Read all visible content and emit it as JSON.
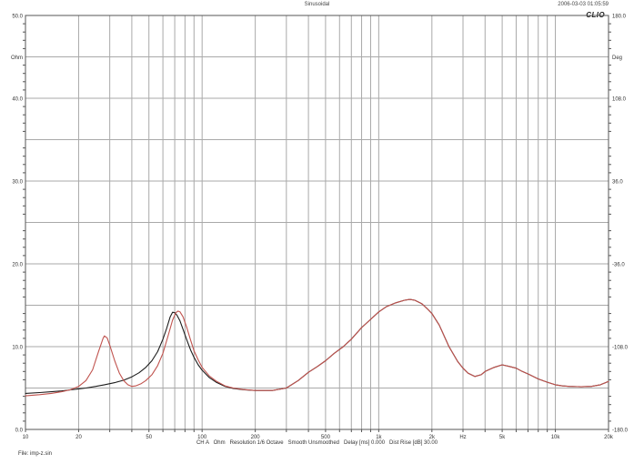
{
  "header": {
    "title": "Sinusoidal",
    "datetime": "2006-03-03 01:05:59",
    "logo": "CLIO"
  },
  "status_bar": {
    "text": "CH A   Ohm   Resolution 1/6 Octave   Smooth Unsmoothed   Delay [ms] 0.000   Dist Rise [dB] 30.00"
  },
  "file_label": "File: imp-z.sin",
  "chart_data": {
    "type": "line",
    "title": "Sinusoidal",
    "grid": "on",
    "grid_color": "#a9a9a9",
    "border_color": "#555555",
    "x_axis": {
      "scale": "log",
      "min_hz": 10,
      "max_hz": 20000,
      "unit_label": "Hz",
      "unit_label_at_hz": 3000,
      "ticks": [
        {
          "hz": 10,
          "label": "10"
        },
        {
          "hz": 20,
          "label": "20"
        },
        {
          "hz": 50,
          "label": "50"
        },
        {
          "hz": 100,
          "label": "100"
        },
        {
          "hz": 200,
          "label": "200"
        },
        {
          "hz": 500,
          "label": "500"
        },
        {
          "hz": 1000,
          "label": "1k"
        },
        {
          "hz": 2000,
          "label": "2k"
        },
        {
          "hz": 5000,
          "label": "5k"
        },
        {
          "hz": 10000,
          "label": "10k"
        },
        {
          "hz": 20000,
          "label": "20k"
        }
      ]
    },
    "y_axis_left": {
      "unit_label": "Ohm",
      "unit_label_at": 45,
      "min": 0,
      "max": 50,
      "gridline_step": 5,
      "ticks": [
        {
          "v": 50,
          "label": "50.0"
        },
        {
          "v": 40,
          "label": "40.0"
        },
        {
          "v": 30,
          "label": "30.0"
        },
        {
          "v": 20,
          "label": "20.0"
        },
        {
          "v": 10,
          "label": "10.0"
        },
        {
          "v": 0,
          "label": "0.0"
        }
      ]
    },
    "y_axis_right": {
      "unit_label": "Deg",
      "unit_label_at": 144,
      "min": -180,
      "max": 180,
      "ticks": [
        {
          "v": 180,
          "label": "180.0"
        },
        {
          "v": 108,
          "label": "108.0"
        },
        {
          "v": 36,
          "label": "36.0"
        },
        {
          "v": -36,
          "label": "-36.0"
        },
        {
          "v": -108,
          "label": "-108.0"
        },
        {
          "v": -180,
          "label": "-180.0"
        }
      ]
    },
    "series": [
      {
        "name": "impedance-curve-black",
        "color": "#1c1c1c",
        "points": [
          [
            10,
            4.35
          ],
          [
            12,
            4.45
          ],
          [
            14,
            4.55
          ],
          [
            16,
            4.65
          ],
          [
            18,
            4.78
          ],
          [
            20,
            4.9
          ],
          [
            22,
            5.0
          ],
          [
            25,
            5.2
          ],
          [
            28,
            5.4
          ],
          [
            32,
            5.65
          ],
          [
            36,
            5.95
          ],
          [
            40,
            6.35
          ],
          [
            44,
            6.85
          ],
          [
            48,
            7.5
          ],
          [
            52,
            8.3
          ],
          [
            56,
            9.4
          ],
          [
            60,
            10.9
          ],
          [
            63,
            12.2
          ],
          [
            66,
            13.6
          ],
          [
            68,
            14.15
          ],
          [
            70,
            14.1
          ],
          [
            72,
            13.8
          ],
          [
            75,
            13.1
          ],
          [
            78,
            12.1
          ],
          [
            82,
            10.8
          ],
          [
            86,
            9.6
          ],
          [
            90,
            8.7
          ],
          [
            95,
            7.8
          ],
          [
            100,
            7.15
          ],
          [
            110,
            6.25
          ],
          [
            120,
            5.7
          ],
          [
            135,
            5.2
          ],
          [
            150,
            4.95
          ],
          [
            170,
            4.8
          ],
          [
            200,
            4.7
          ],
          [
            250,
            4.7
          ],
          [
            300,
            5.0
          ],
          [
            350,
            5.9
          ],
          [
            400,
            6.9
          ],
          [
            450,
            7.6
          ],
          [
            500,
            8.3
          ],
          [
            560,
            9.2
          ],
          [
            630,
            10.0
          ],
          [
            700,
            10.9
          ],
          [
            800,
            12.3
          ],
          [
            900,
            13.3
          ],
          [
            1000,
            14.2
          ],
          [
            1100,
            14.8
          ],
          [
            1250,
            15.3
          ],
          [
            1400,
            15.6
          ],
          [
            1500,
            15.7
          ],
          [
            1600,
            15.6
          ],
          [
            1750,
            15.2
          ],
          [
            1900,
            14.5
          ],
          [
            2000,
            14.0
          ],
          [
            2200,
            12.6
          ],
          [
            2500,
            10.0
          ],
          [
            2800,
            8.2
          ],
          [
            3000,
            7.4
          ],
          [
            3200,
            6.8
          ],
          [
            3500,
            6.4
          ],
          [
            3800,
            6.6
          ],
          [
            4000,
            7.0
          ],
          [
            4500,
            7.5
          ],
          [
            5000,
            7.8
          ],
          [
            5500,
            7.6
          ],
          [
            6000,
            7.4
          ],
          [
            6500,
            7.0
          ],
          [
            7000,
            6.7
          ],
          [
            8000,
            6.1
          ],
          [
            9000,
            5.7
          ],
          [
            10000,
            5.4
          ],
          [
            11000,
            5.25
          ],
          [
            12000,
            5.2
          ],
          [
            14000,
            5.15
          ],
          [
            16000,
            5.2
          ],
          [
            18000,
            5.4
          ],
          [
            20000,
            5.8
          ]
        ]
      },
      {
        "name": "impedance-curve-red",
        "color": "#c0534e",
        "points": [
          [
            10,
            4.05
          ],
          [
            12,
            4.2
          ],
          [
            14,
            4.35
          ],
          [
            16,
            4.55
          ],
          [
            18,
            4.8
          ],
          [
            20,
            5.2
          ],
          [
            22,
            5.9
          ],
          [
            24,
            7.2
          ],
          [
            26,
            9.5
          ],
          [
            27.5,
            11.0
          ],
          [
            28,
            11.3
          ],
          [
            29,
            11.05
          ],
          [
            30,
            10.2
          ],
          [
            32,
            8.3
          ],
          [
            34,
            6.8
          ],
          [
            36,
            5.9
          ],
          [
            38,
            5.4
          ],
          [
            40,
            5.2
          ],
          [
            42,
            5.25
          ],
          [
            45,
            5.5
          ],
          [
            48,
            5.9
          ],
          [
            52,
            6.6
          ],
          [
            56,
            7.7
          ],
          [
            60,
            9.2
          ],
          [
            64,
            11.2
          ],
          [
            68,
            13.2
          ],
          [
            71,
            14.1
          ],
          [
            73,
            14.3
          ],
          [
            75,
            14.2
          ],
          [
            78,
            13.6
          ],
          [
            82,
            12.3
          ],
          [
            86,
            10.8
          ],
          [
            90,
            9.5
          ],
          [
            95,
            8.4
          ],
          [
            100,
            7.5
          ],
          [
            110,
            6.45
          ],
          [
            120,
            5.85
          ],
          [
            135,
            5.25
          ],
          [
            150,
            5.0
          ],
          [
            170,
            4.82
          ],
          [
            200,
            4.7
          ],
          [
            250,
            4.7
          ],
          [
            300,
            5.0
          ],
          [
            350,
            5.9
          ],
          [
            400,
            6.9
          ],
          [
            450,
            7.6
          ],
          [
            500,
            8.3
          ],
          [
            560,
            9.2
          ],
          [
            630,
            10.0
          ],
          [
            700,
            10.9
          ],
          [
            800,
            12.3
          ],
          [
            900,
            13.3
          ],
          [
            1000,
            14.2
          ],
          [
            1100,
            14.8
          ],
          [
            1250,
            15.3
          ],
          [
            1400,
            15.6
          ],
          [
            1500,
            15.7
          ],
          [
            1600,
            15.6
          ],
          [
            1750,
            15.2
          ],
          [
            1900,
            14.5
          ],
          [
            2000,
            14.0
          ],
          [
            2200,
            12.6
          ],
          [
            2500,
            10.0
          ],
          [
            2800,
            8.2
          ],
          [
            3000,
            7.4
          ],
          [
            3200,
            6.8
          ],
          [
            3500,
            6.4
          ],
          [
            3800,
            6.6
          ],
          [
            4000,
            7.0
          ],
          [
            4500,
            7.5
          ],
          [
            5000,
            7.8
          ],
          [
            5500,
            7.6
          ],
          [
            6000,
            7.4
          ],
          [
            6500,
            7.0
          ],
          [
            7000,
            6.7
          ],
          [
            8000,
            6.1
          ],
          [
            9000,
            5.7
          ],
          [
            10000,
            5.4
          ],
          [
            11000,
            5.25
          ],
          [
            12000,
            5.2
          ],
          [
            14000,
            5.15
          ],
          [
            16000,
            5.2
          ],
          [
            18000,
            5.4
          ],
          [
            20000,
            5.8
          ]
        ]
      }
    ]
  }
}
